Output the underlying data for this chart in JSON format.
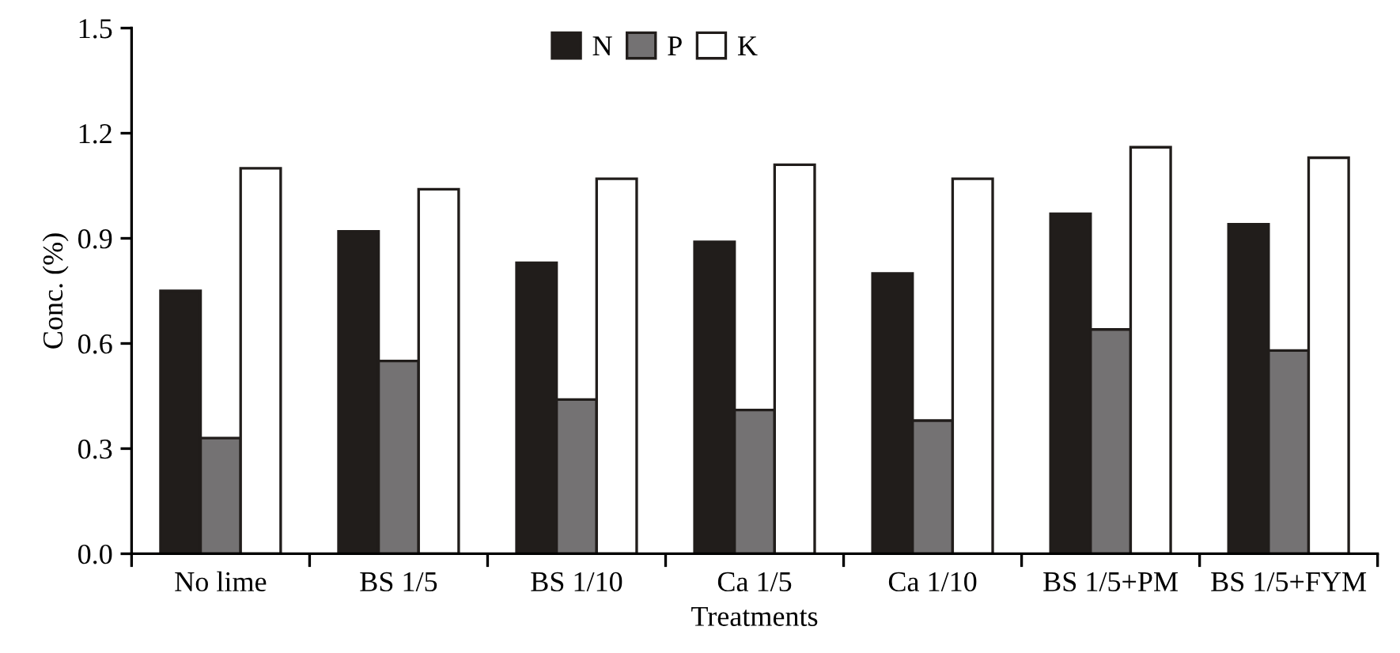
{
  "chart_data": {
    "type": "bar",
    "xlabel": "Treatments",
    "ylabel": "Conc. (%)",
    "categories": [
      "No lime",
      "BS 1/5",
      "BS 1/10",
      "Ca 1/5",
      "Ca 1/10",
      "BS 1/5+PM",
      "BS 1/5+FYM"
    ],
    "series": [
      {
        "name": "N",
        "color": "#211d1b",
        "values": [
          0.75,
          0.92,
          0.83,
          0.89,
          0.8,
          0.97,
          0.94
        ]
      },
      {
        "name": "P",
        "color": "#747273",
        "values": [
          0.33,
          0.55,
          0.44,
          0.41,
          0.38,
          0.64,
          0.58
        ]
      },
      {
        "name": "K",
        "color": "#ffffff",
        "values": [
          1.1,
          1.04,
          1.07,
          1.11,
          1.07,
          1.16,
          1.13
        ]
      }
    ],
    "ylim": [
      0,
      1.5
    ],
    "yticks": [
      {
        "value": 0,
        "label": "0.0"
      },
      0.3,
      0.6,
      0.9,
      1.2,
      1.5
    ],
    "grid": false,
    "legend": "top"
  }
}
